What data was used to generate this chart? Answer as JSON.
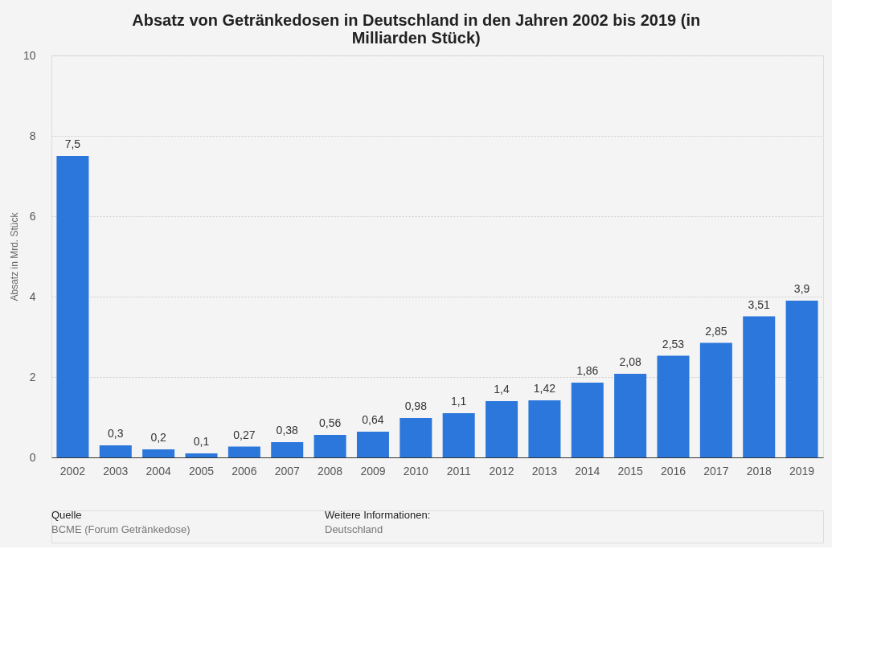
{
  "chart_data": {
    "type": "bar",
    "title": "Absatz von Getränkedosen in Deutschland in den Jahren 2002 bis 2019 (in Milliarden Stück)",
    "ylabel": "Absatz in Mrd. Stück",
    "categories": [
      "2002",
      "2003",
      "2004",
      "2005",
      "2006",
      "2007",
      "2008",
      "2009",
      "2010",
      "2011",
      "2012",
      "2013",
      "2014",
      "2015",
      "2016",
      "2017",
      "2018",
      "2019"
    ],
    "values": [
      7.5,
      0.3,
      0.2,
      0.1,
      0.27,
      0.38,
      0.56,
      0.64,
      0.98,
      1.1,
      1.4,
      1.42,
      1.86,
      2.08,
      2.53,
      2.85,
      3.51,
      3.9
    ],
    "value_labels": [
      "7,5",
      "0,3",
      "0,2",
      "0,1",
      "0,27",
      "0,38",
      "0,56",
      "0,64",
      "0,98",
      "1,1",
      "1,4",
      "1,42",
      "1,86",
      "2,08",
      "2,53",
      "2,85",
      "3,51",
      "3,9"
    ],
    "color": "#2b77db",
    "ylim": [
      0,
      10
    ],
    "yticks": [
      0,
      2,
      4,
      6,
      8,
      10
    ],
    "grid": "y",
    "annotations": [
      "Quelle",
      "BCME (Forum Getränkedose)",
      "Weitere Informationen:",
      "Deutschland"
    ]
  }
}
